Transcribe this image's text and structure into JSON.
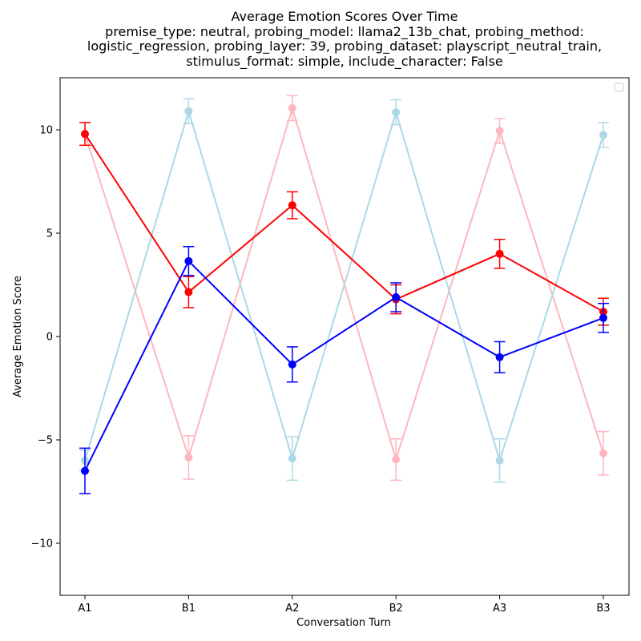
{
  "chart_data": {
    "type": "line",
    "title": "Average Emotion Scores Over Time",
    "subtitle_lines": [
      "premise_type: neutral, probing_model: llama2_13b_chat, probing_method:",
      "logistic_regression, probing_layer: 39, probing_dataset: playscript_neutral_train,",
      "stimulus_format: simple, include_character: False"
    ],
    "xlabel": "Conversation Turn",
    "ylabel": "Average Emotion Score",
    "categories": [
      "A1",
      "B1",
      "A2",
      "B2",
      "A3",
      "B3"
    ],
    "ylim": [
      -12.5,
      12.5
    ],
    "yticks": [
      -10,
      -5,
      0,
      5,
      10
    ],
    "ytick_labels": [
      "−10",
      "−5",
      "0",
      "5",
      "10"
    ],
    "grid": false,
    "legend": {
      "placement": "top-right",
      "entries": []
    },
    "series": [
      {
        "color": "#ffb6c1",
        "values": [
          9.8,
          -5.85,
          11.05,
          -5.95,
          9.95,
          -5.65
        ],
        "errors": [
          0.55,
          1.05,
          0.6,
          1.0,
          0.6,
          1.05
        ]
      },
      {
        "color": "#add8e6",
        "values": [
          -6.0,
          10.9,
          -5.9,
          10.85,
          -6.0,
          9.75
        ],
        "errors": [
          0.5,
          0.6,
          1.05,
          0.6,
          1.05,
          0.6
        ]
      },
      {
        "color": "#ff0000",
        "values": [
          9.8,
          2.15,
          6.35,
          1.8,
          4.0,
          1.2
        ],
        "errors": [
          0.55,
          0.75,
          0.65,
          0.7,
          0.7,
          0.65
        ]
      },
      {
        "color": "#0000ff",
        "values": [
          -6.5,
          3.65,
          -1.35,
          1.9,
          -1.0,
          0.9
        ],
        "errors": [
          1.1,
          0.7,
          0.85,
          0.7,
          0.75,
          0.7
        ]
      }
    ]
  }
}
